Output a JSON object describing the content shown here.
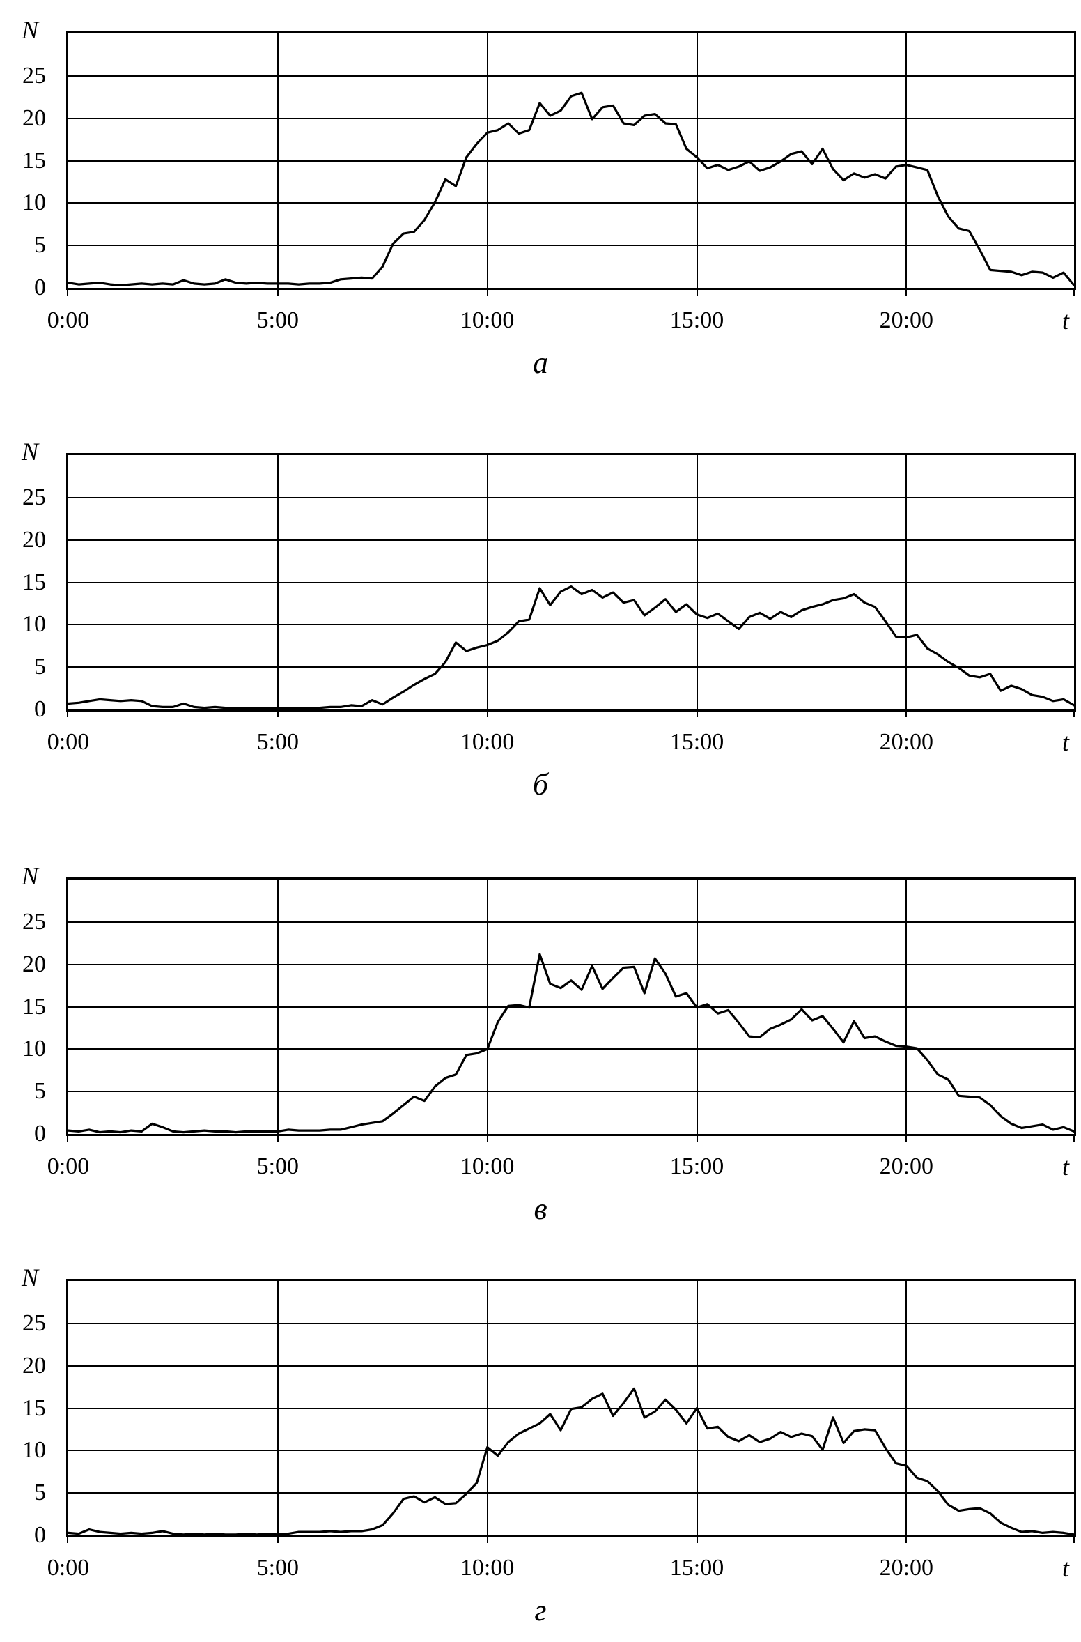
{
  "page": {
    "background": "#ffffff",
    "line_color": "#000000"
  },
  "chart_data": [
    {
      "id": "a",
      "type": "line",
      "caption": "а",
      "y_axis_title": "N",
      "x_axis_title": "t",
      "x_tick_labels": [
        "0:00",
        "5:00",
        "10:00",
        "15:00",
        "20:00"
      ],
      "x_tick_hours": [
        0,
        5,
        10,
        15,
        20
      ],
      "y_ticks": [
        0,
        5,
        10,
        15,
        20,
        25
      ],
      "xlim": [
        0,
        24
      ],
      "ylim": [
        0,
        30
      ],
      "grid": true,
      "legend": "none",
      "line_color": "#000000",
      "x_start_hours": 0,
      "x_step_hours": 0.25,
      "values": [
        0.6,
        0.4,
        0.5,
        0.6,
        0.4,
        0.3,
        0.4,
        0.5,
        0.4,
        0.5,
        0.4,
        0.9,
        0.5,
        0.4,
        0.5,
        1.0,
        0.6,
        0.5,
        0.6,
        0.5,
        0.5,
        0.5,
        0.4,
        0.5,
        0.5,
        0.6,
        1.0,
        1.1,
        1.2,
        1.1,
        2.5,
        5.2,
        6.4,
        6.6,
        8.0,
        10.1,
        12.8,
        12.0,
        15.4,
        17.0,
        18.3,
        18.6,
        19.4,
        18.2,
        18.6,
        21.8,
        20.3,
        20.9,
        22.6,
        23.0,
        19.9,
        21.3,
        21.5,
        19.4,
        19.2,
        20.3,
        20.5,
        19.4,
        19.3,
        16.4,
        15.4,
        14.1,
        14.5,
        13.9,
        14.3,
        14.9,
        13.8,
        14.2,
        14.9,
        15.8,
        16.1,
        14.6,
        16.4,
        14.0,
        12.7,
        13.5,
        13.0,
        13.4,
        12.9,
        14.3,
        14.5,
        14.2,
        13.9,
        10.8,
        8.4,
        7.0,
        6.7,
        4.5,
        2.1,
        2.0,
        1.9,
        1.5,
        1.9,
        1.8,
        1.2,
        1.8,
        0.3
      ]
    },
    {
      "id": "b",
      "type": "line",
      "caption": "б",
      "y_axis_title": "N",
      "x_axis_title": "t",
      "x_tick_labels": [
        "0:00",
        "5:00",
        "10:00",
        "15:00",
        "20:00"
      ],
      "x_tick_hours": [
        0,
        5,
        10,
        15,
        20
      ],
      "y_ticks": [
        0,
        5,
        10,
        15,
        20,
        25
      ],
      "xlim": [
        0,
        24
      ],
      "ylim": [
        0,
        30
      ],
      "grid": true,
      "legend": "none",
      "line_color": "#000000",
      "x_start_hours": 0,
      "x_step_hours": 0.25,
      "values": [
        0.7,
        0.8,
        1.0,
        1.2,
        1.1,
        1.0,
        1.1,
        1.0,
        0.4,
        0.3,
        0.3,
        0.7,
        0.3,
        0.2,
        0.3,
        0.2,
        0.2,
        0.2,
        0.2,
        0.2,
        0.2,
        0.2,
        0.2,
        0.2,
        0.2,
        0.3,
        0.3,
        0.5,
        0.4,
        1.1,
        0.6,
        1.4,
        2.1,
        2.9,
        3.6,
        4.2,
        5.6,
        7.9,
        6.9,
        7.3,
        7.6,
        8.1,
        9.1,
        10.4,
        10.6,
        14.3,
        12.3,
        13.9,
        14.5,
        13.6,
        14.1,
        13.2,
        13.8,
        12.6,
        12.9,
        11.1,
        12.0,
        13.0,
        11.5,
        12.4,
        11.2,
        10.8,
        11.3,
        10.4,
        9.5,
        10.9,
        11.4,
        10.7,
        11.5,
        10.9,
        11.7,
        12.1,
        12.4,
        12.9,
        13.1,
        13.6,
        12.6,
        12.1,
        10.4,
        8.6,
        8.5,
        8.8,
        7.2,
        6.5,
        5.6,
        4.9,
        4.0,
        3.8,
        4.2,
        2.2,
        2.8,
        2.4,
        1.7,
        1.5,
        1.0,
        1.2,
        0.5
      ]
    },
    {
      "id": "v",
      "type": "line",
      "caption": "в",
      "y_axis_title": "N",
      "x_axis_title": "t",
      "x_tick_labels": [
        "0:00",
        "5:00",
        "10:00",
        "15:00",
        "20:00"
      ],
      "x_tick_hours": [
        0,
        5,
        10,
        15,
        20
      ],
      "y_ticks": [
        0,
        5,
        10,
        15,
        20,
        25
      ],
      "xlim": [
        0,
        24
      ],
      "ylim": [
        0,
        30
      ],
      "grid": true,
      "legend": "none",
      "line_color": "#000000",
      "x_start_hours": 0,
      "x_step_hours": 0.25,
      "values": [
        0.4,
        0.3,
        0.5,
        0.2,
        0.3,
        0.2,
        0.4,
        0.3,
        1.2,
        0.8,
        0.3,
        0.2,
        0.3,
        0.4,
        0.3,
        0.3,
        0.2,
        0.3,
        0.3,
        0.3,
        0.3,
        0.5,
        0.4,
        0.4,
        0.4,
        0.5,
        0.5,
        0.8,
        1.1,
        1.3,
        1.5,
        2.4,
        3.4,
        4.4,
        3.9,
        5.6,
        6.6,
        7.0,
        9.3,
        9.5,
        10.0,
        13.2,
        15.1,
        15.2,
        14.9,
        21.2,
        17.7,
        17.2,
        18.1,
        17.0,
        19.8,
        17.1,
        18.4,
        19.6,
        19.7,
        16.6,
        20.7,
        18.9,
        16.2,
        16.6,
        14.9,
        15.3,
        14.2,
        14.6,
        13.1,
        11.5,
        11.4,
        12.4,
        12.9,
        13.5,
        14.7,
        13.4,
        13.9,
        12.4,
        10.8,
        13.3,
        11.3,
        11.5,
        10.9,
        10.4,
        10.3,
        10.1,
        8.7,
        7.0,
        6.4,
        4.5,
        4.4,
        4.3,
        3.4,
        2.1,
        1.2,
        0.7,
        0.9,
        1.1,
        0.5,
        0.8,
        0.3
      ]
    },
    {
      "id": "g",
      "type": "line",
      "caption": "г",
      "y_axis_title": "N",
      "x_axis_title": "t",
      "x_tick_labels": [
        "0:00",
        "5:00",
        "10:00",
        "15:00",
        "20:00"
      ],
      "x_tick_hours": [
        0,
        5,
        10,
        15,
        20
      ],
      "y_ticks": [
        0,
        5,
        10,
        15,
        20,
        25
      ],
      "xlim": [
        0,
        24
      ],
      "ylim": [
        0,
        30
      ],
      "grid": true,
      "legend": "none",
      "line_color": "#000000",
      "x_start_hours": 0,
      "x_step_hours": 0.25,
      "values": [
        0.3,
        0.2,
        0.7,
        0.4,
        0.3,
        0.2,
        0.3,
        0.2,
        0.3,
        0.5,
        0.2,
        0.1,
        0.2,
        0.1,
        0.2,
        0.1,
        0.1,
        0.2,
        0.1,
        0.2,
        0.1,
        0.2,
        0.4,
        0.4,
        0.4,
        0.5,
        0.4,
        0.5,
        0.5,
        0.7,
        1.2,
        2.6,
        4.3,
        4.6,
        3.9,
        4.5,
        3.7,
        3.8,
        4.9,
        6.2,
        10.4,
        9.4,
        11.0,
        12.0,
        12.6,
        13.2,
        14.3,
        12.4,
        14.9,
        15.1,
        16.1,
        16.7,
        14.1,
        15.6,
        17.3,
        13.9,
        14.6,
        16.0,
        14.8,
        13.2,
        15.0,
        12.6,
        12.8,
        11.6,
        11.1,
        11.8,
        11.0,
        11.4,
        12.2,
        11.6,
        12.0,
        11.7,
        10.1,
        13.9,
        10.9,
        12.3,
        12.5,
        12.4,
        10.3,
        8.5,
        8.2,
        6.8,
        6.4,
        5.2,
        3.6,
        2.9,
        3.1,
        3.2,
        2.6,
        1.5,
        0.9,
        0.4,
        0.5,
        0.3,
        0.4,
        0.3,
        0.1
      ]
    }
  ]
}
